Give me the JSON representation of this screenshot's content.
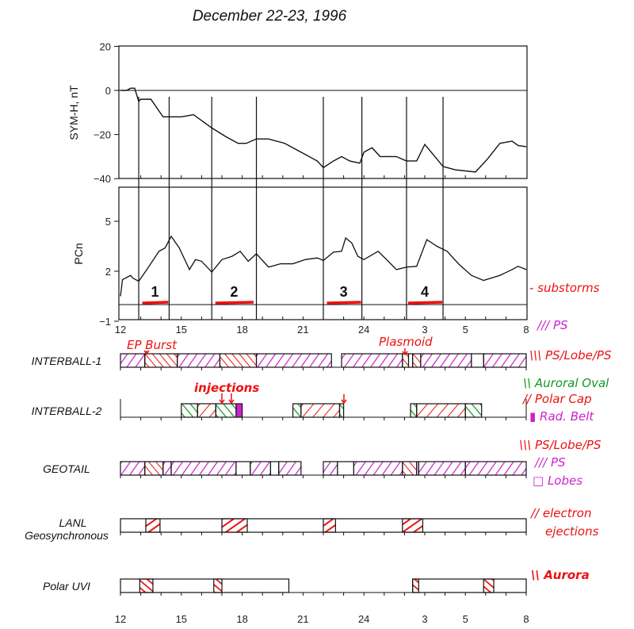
{
  "title": "December 22-23, 1996",
  "colors": {
    "ps": "#cc22cc",
    "red": "#ee1111",
    "green": "#119922",
    "ink": "#111111"
  },
  "chart_data": [
    {
      "type": "line",
      "ylabel": "SYM-H, nT",
      "ylim": [
        -40,
        20
      ],
      "yticks": [
        "20",
        "0",
        "-20",
        "-40"
      ],
      "xlim": [
        12,
        32
      ],
      "x": [
        12.0,
        12.3,
        12.5,
        12.7,
        12.9,
        13.0,
        13.5,
        14.1,
        14.4,
        15.0,
        15.6,
        16.2,
        16.5,
        17.2,
        17.8,
        18.2,
        18.7,
        19.3,
        20.1,
        20.9,
        21.5,
        21.7,
        22.0,
        22.5,
        22.9,
        23.3,
        23.8,
        24.0,
        24.4,
        24.8,
        25.6,
        26.1,
        26.6,
        27.0,
        27.5,
        27.9,
        28.5,
        29.5,
        30.1,
        30.7,
        31.3,
        31.6,
        32.0
      ],
      "y": [
        0,
        0,
        1,
        1,
        -5,
        -4,
        -4,
        -12,
        -12,
        -12,
        -11,
        -15,
        -17,
        -21,
        -24,
        -24,
        -22,
        -22,
        -24,
        -28,
        -31,
        -32,
        -35,
        -32,
        -30,
        -32,
        -33,
        -28,
        -26,
        -30,
        -30,
        -32,
        -32,
        -24.5,
        -30,
        -34.5,
        -36,
        -37,
        -31,
        -24,
        -23,
        -25,
        -25.5
      ]
    },
    {
      "type": "line",
      "ylabel": "PCn",
      "ylim": [
        -1,
        7
      ],
      "yticks": [
        "5",
        "2",
        "-1"
      ],
      "xlim": [
        12,
        32
      ],
      "xticks": [
        [
          12,
          "12"
        ],
        [
          15,
          "15"
        ],
        [
          18,
          "18"
        ],
        [
          21,
          "21"
        ],
        [
          24,
          "24"
        ],
        [
          27,
          "3"
        ],
        [
          29,
          "5"
        ],
        [
          32,
          "8"
        ]
      ],
      "x": [
        12.0,
        12.1,
        12.5,
        12.6,
        12.9,
        13.3,
        13.9,
        14.2,
        14.5,
        14.9,
        15.4,
        15.7,
        16.0,
        16.5,
        17.0,
        17.5,
        17.9,
        18.3,
        18.7,
        19.3,
        19.9,
        20.5,
        21.1,
        21.7,
        22.0,
        22.5,
        22.9,
        23.1,
        23.4,
        23.7,
        24.0,
        24.7,
        25.2,
        25.6,
        26.1,
        26.6,
        27.1,
        27.6,
        28.1,
        28.7,
        29.3,
        29.9,
        30.7,
        31.3,
        31.6,
        32.0
      ],
      "y": [
        0.5,
        1.5,
        1.75,
        1.6,
        1.4,
        2.1,
        3.2,
        3.4,
        4.1,
        3.4,
        2.1,
        2.7,
        2.6,
        1.95,
        2.7,
        2.9,
        3.2,
        2.6,
        3.05,
        2.25,
        2.45,
        2.45,
        2.7,
        2.8,
        2.65,
        3.15,
        3.2,
        4.0,
        3.7,
        2.9,
        2.7,
        3.2,
        2.6,
        2.1,
        2.25,
        2.3,
        3.9,
        3.5,
        3.2,
        2.4,
        1.75,
        1.45,
        1.75,
        2.1,
        2.3,
        2.1
      ]
    }
  ],
  "substorm_lines": [
    12.9,
    14.4,
    16.5,
    18.7,
    22.0,
    23.9,
    26.1,
    27.9
  ],
  "substorms": [
    {
      "label": "1",
      "start": 13.0,
      "end": 14.4
    },
    {
      "label": "2",
      "start": 16.6,
      "end": 18.6
    },
    {
      "label": "3",
      "start": 22.1,
      "end": 23.9
    },
    {
      "label": "4",
      "start": 26.1,
      "end": 27.9
    }
  ],
  "substorms_label": "- substorms",
  "rows": [
    {
      "name": "INTERBALL-1",
      "boxes": [],
      "segments": [
        [
          12,
          13.2,
          "PS"
        ],
        [
          13.2,
          14.8,
          "PSL"
        ],
        [
          14.8,
          16.9,
          "PS"
        ],
        [
          16.9,
          18.7,
          "PSL"
        ],
        [
          18.7,
          22.4,
          "PS"
        ],
        [
          22.9,
          25.9,
          "PS"
        ],
        [
          25.9,
          26.2,
          "PSL"
        ],
        [
          26.2,
          26.4,
          "none"
        ],
        [
          26.4,
          26.8,
          "PSL"
        ],
        [
          26.8,
          29.3,
          "PS"
        ],
        [
          29.3,
          29.9,
          "none"
        ],
        [
          29.9,
          32,
          "PS"
        ]
      ]
    },
    {
      "name": "INTERBALL-2",
      "boxes": [],
      "segments": [
        [
          15.0,
          15.8,
          "AO"
        ],
        [
          15.8,
          16.7,
          "PC"
        ],
        [
          16.7,
          17.7,
          "AO"
        ],
        [
          17.7,
          18.0,
          "RB"
        ],
        [
          20.5,
          20.9,
          "AO"
        ],
        [
          20.9,
          22.8,
          "PC"
        ],
        [
          22.8,
          23.0,
          "AO"
        ],
        [
          26.3,
          26.6,
          "AO"
        ],
        [
          26.6,
          29.0,
          "PC"
        ],
        [
          29.0,
          29.8,
          "AO"
        ]
      ]
    },
    {
      "name": "GEOTAIL",
      "boxes": [],
      "segments": [
        [
          12,
          13.2,
          "PS"
        ],
        [
          13.2,
          14.1,
          "PSL"
        ],
        [
          14.1,
          14.5,
          "PS"
        ],
        [
          14.5,
          17.7,
          "PS"
        ],
        [
          17.7,
          18.4,
          "none"
        ],
        [
          18.4,
          19.4,
          "PS"
        ],
        [
          19.4,
          19.8,
          "none"
        ],
        [
          19.8,
          20.9,
          "PS"
        ],
        [
          22.0,
          22.7,
          "PS"
        ],
        [
          22.7,
          23.5,
          "none"
        ],
        [
          23.5,
          25.9,
          "PS"
        ],
        [
          25.9,
          26.6,
          "PSL"
        ],
        [
          26.6,
          26.7,
          "none"
        ],
        [
          26.7,
          29.0,
          "PS"
        ],
        [
          29.0,
          32,
          "PS"
        ]
      ]
    },
    {
      "name": "LANL",
      "name2": "Geosynchronous",
      "boxes": [
        [
          12,
          32
        ]
      ],
      "segments": [
        [
          13.25,
          13.95,
          "EJ"
        ],
        [
          17.0,
          18.25,
          "EJ"
        ],
        [
          22.0,
          22.6,
          "EJ"
        ],
        [
          25.9,
          26.9,
          "EJ"
        ]
      ]
    },
    {
      "name": "Polar UVI",
      "boxes": [
        [
          12,
          20.3
        ],
        [
          26.4,
          32
        ]
      ],
      "segments": [
        [
          12.95,
          13.6,
          "AU"
        ],
        [
          16.6,
          17.0,
          "AU"
        ],
        [
          26.4,
          26.7,
          "AU"
        ],
        [
          29.9,
          30.4,
          "AU"
        ]
      ]
    }
  ],
  "annotations": {
    "ep_burst": "EP Burst",
    "plasmoid": "Plasmoid",
    "injections": "injections"
  },
  "legend": [
    {
      "symbol": "///",
      "text": "PS",
      "color": "#cc22cc"
    },
    {
      "symbol": "\\\\\\",
      "text": "PS/Lobe/PS",
      "color": "#ee1111"
    },
    {
      "symbol": "\\\\",
      "text": "Auroral Oval",
      "color": "#119922"
    },
    {
      "symbol": "//",
      "text": "Polar Cap",
      "color": "#ee1111"
    },
    {
      "symbol": "▮",
      "text": "Rad. Belt",
      "color": "#cc22cc"
    },
    {
      "symbol": "\\\\\\",
      "text": "PS/Lobe/PS",
      "color": "#ee1111"
    },
    {
      "symbol": "///",
      "text": "PS",
      "color": "#cc22cc"
    },
    {
      "symbol": "□",
      "text": "Lobes",
      "color": "#cc22cc"
    },
    {
      "symbol": "//",
      "text": "electron",
      "color": "#ee1111"
    },
    {
      "symbol": "",
      "text": "ejections",
      "color": "#ee1111"
    },
    {
      "symbol": "\\\\",
      "text": "Aurora",
      "color": "#ee1111"
    }
  ]
}
